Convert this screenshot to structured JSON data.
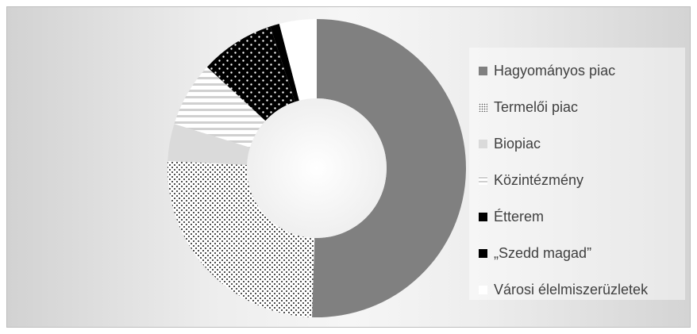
{
  "chart_data": {
    "type": "doughnut",
    "categories": [
      "Hagyományos piac",
      "Termelői piac",
      "Biopiac",
      "Közintézmény",
      "Étterem",
      "„Szedd magad”",
      "Városi élelmiszerüzletek"
    ],
    "values": [
      50,
      25,
      4,
      7,
      8,
      1,
      4
    ],
    "value_unit": "share",
    "legend_position": "right",
    "colors": {
      "Hagyományos piac": "#808080",
      "Termelői piac": "dotted-pattern",
      "Biopiac": "#dadada",
      "Közintézmény": "horizontal-stripes",
      "Étterem": "black-with-white-dots",
      "„Szedd magad”": "#000000",
      "Városi élelmiszerüzletek": "#ffffff"
    }
  }
}
